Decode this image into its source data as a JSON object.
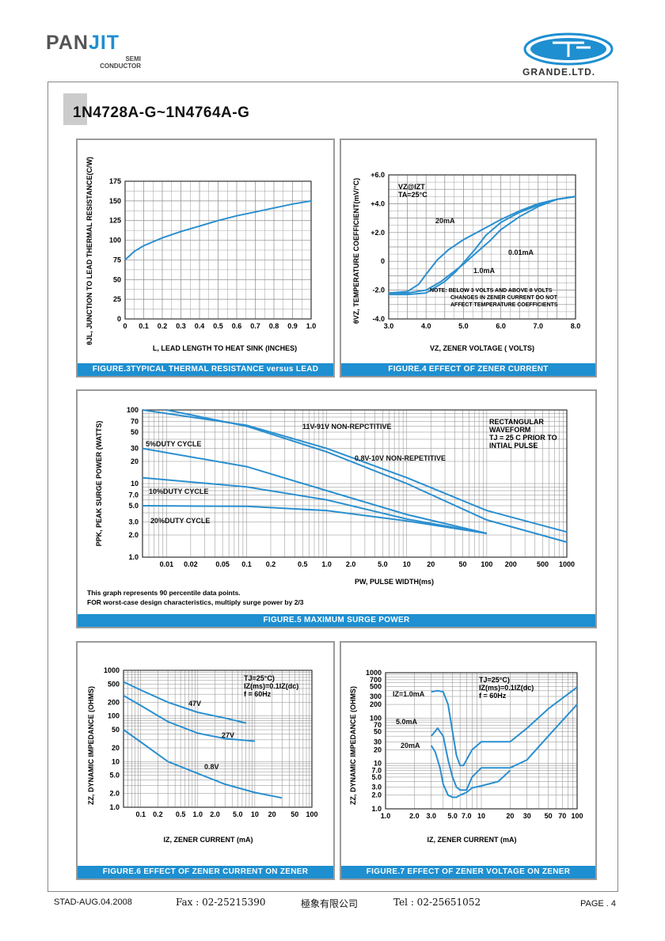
{
  "header": {
    "logo_main_a": "PAN",
    "logo_main_b": "JIT",
    "logo_sub_1": "SEMI",
    "logo_sub_2": "CONDUCTOR",
    "grande": "GRANDE.LTD.",
    "title": "1N4728A-G~1N4764A-G"
  },
  "footer": {
    "left": "STAD-AUG.04.2008",
    "fax": "Fax : 02-25215390",
    "company": "極象有限公司",
    "tel": "Tel : 02-25651052",
    "page": "PAGE . 4"
  },
  "colors": {
    "accent": "#1e8fd0",
    "curve": "#2a8fcf",
    "grid": "#8a8a8a"
  },
  "chart_data": [
    {
      "type": "line",
      "caption": "FIGURE.3TYPICAL THERMAL RESISTANCE versus LEAD LENGTH",
      "xlabel": "L, LEAD LENGTH TO HEAT SINK (INCHES)",
      "ylabel": "θJL, JUNCTION TO LEAD THERMAL RESISTANCE(C/W)",
      "xlim": [
        0,
        1.0
      ],
      "ylim": [
        0,
        175
      ],
      "xticks": [
        "0",
        "0.1",
        "0.2",
        "0.3",
        "0.4",
        "0.5",
        "0.6",
        "0.7",
        "0.8",
        "0.9",
        "1.0"
      ],
      "yticks": [
        "0",
        "25",
        "50",
        "75",
        "100",
        "125",
        "150",
        "175"
      ],
      "series": [
        {
          "x": [
            0,
            0.05,
            0.1,
            0.2,
            0.3,
            0.4,
            0.5,
            0.6,
            0.7,
            0.8,
            0.9,
            1.0
          ],
          "y": [
            75,
            86,
            93,
            103,
            111,
            118,
            125,
            131,
            136,
            141,
            146,
            150
          ]
        }
      ]
    },
    {
      "type": "line",
      "caption": "FIGURE.4 EFFECT OF ZENER CURRENT",
      "xlabel": "VZ, ZENER VOLTAGE ( VOLTS)",
      "ylabel": "θVZ, TEMPERATURE COEFFICIENT(mV/°C)",
      "xlim": [
        3.0,
        8.0
      ],
      "ylim": [
        -4.0,
        6.0
      ],
      "xticks": [
        "3.0",
        "4.0",
        "5.0",
        "6.0",
        "7.0",
        "8.0"
      ],
      "yticks": [
        "-4.0",
        "-2.0",
        "0",
        "+2.0",
        "+4.0",
        "+6.0"
      ],
      "annotations": [
        "VZ@IZT",
        "TA=25°C",
        "NOTE: BELOW 3 VOLTS AND ABOVE 8 VOLTS",
        "CHANGES IN ZENER CURRENT DO NOT",
        "AFFECT TEMPERATURE COEFFICIENTS"
      ],
      "series": [
        {
          "name": "20mA",
          "x": [
            3.0,
            3.5,
            3.8,
            4.0,
            4.3,
            4.6,
            5.0,
            5.5,
            6.0,
            6.5,
            7.0,
            7.5,
            8.0
          ],
          "y": [
            -2.2,
            -2.1,
            -1.6,
            -0.9,
            0.1,
            0.8,
            1.5,
            2.2,
            2.9,
            3.5,
            4.0,
            4.3,
            4.5
          ]
        },
        {
          "name": "0.01mA",
          "x": [
            3.0,
            3.5,
            4.0,
            4.5,
            4.8,
            5.0,
            5.3,
            5.6,
            6.0,
            6.5,
            7.0,
            7.5,
            8.0
          ],
          "y": [
            -2.3,
            -2.3,
            -2.2,
            -1.4,
            -0.7,
            -0.1,
            0.8,
            1.8,
            2.7,
            3.4,
            3.9,
            4.3,
            4.5
          ]
        },
        {
          "name": "1.0mA",
          "x": [
            3.0,
            3.5,
            4.0,
            4.4,
            4.7,
            5.0,
            5.3,
            5.7,
            6.0,
            6.5,
            7.0,
            7.5,
            8.0
          ],
          "y": [
            -2.2,
            -2.2,
            -2.0,
            -1.4,
            -0.8,
            -0.2,
            0.5,
            1.4,
            2.2,
            3.1,
            3.8,
            4.3,
            4.5
          ]
        }
      ]
    },
    {
      "type": "line",
      "caption": "FIGURE.5 MAXIMUM SURGE POWER",
      "xlabel": "PW, PULSE WIDTH(ms)",
      "ylabel": "PPK, PEAK SURGE POWER (WATTS)",
      "log_x": true,
      "log_y": true,
      "xlim": [
        0.005,
        1000
      ],
      "ylim": [
        1.0,
        100
      ],
      "xticks": [
        "0.01",
        "0.02",
        "0.05",
        "0.1",
        "0.2",
        "0.5",
        "1.0",
        "2.0",
        "5.0",
        "10",
        "20",
        "50",
        "100",
        "200",
        "500",
        "1000"
      ],
      "yticks": [
        "1.0",
        "2.0",
        "3.0",
        "5.0",
        "7.0",
        "10",
        "20",
        "30",
        "50",
        "70",
        "100"
      ],
      "notes": [
        "This graph represents 90 percentile data points.",
        "FOR worst-case design characteristics, multiply surge power by 2/3"
      ],
      "legend_box": [
        "RECTANGULAR",
        "WAVEFORM",
        "TJ = 25 C PRIOR TO",
        "INTIAL PULSE"
      ],
      "series": [
        {
          "name": "11V-91V NON-REPCTITIVE",
          "x": [
            0.005,
            0.1,
            1,
            10,
            100,
            1000
          ],
          "y": [
            100,
            62,
            30,
            12,
            4.3,
            2.2
          ]
        },
        {
          "name": "0.8V-10V NON-REPETITIVE",
          "x": [
            0.01,
            0.1,
            1,
            10,
            100,
            1000
          ],
          "y": [
            100,
            60,
            27,
            10,
            3.2,
            1.6
          ]
        },
        {
          "name": "5%DUTY CYCLE",
          "x": [
            0.005,
            0.1,
            1,
            10,
            100
          ],
          "y": [
            30,
            17,
            8,
            3.8,
            2.1
          ]
        },
        {
          "name": "10%DUTY CYCLE",
          "x": [
            0.005,
            0.1,
            1,
            10,
            100
          ],
          "y": [
            12,
            9,
            6,
            3.3,
            2.1
          ]
        },
        {
          "name": "20%DUTY CYCLE",
          "x": [
            0.005,
            0.1,
            1,
            10,
            100
          ],
          "y": [
            5,
            4.9,
            4.3,
            3.1,
            2.1
          ]
        }
      ]
    },
    {
      "type": "line",
      "caption": "FIGURE.6 EFFECT OF ZENER CURRENT ON ZENER IMPEDANCE",
      "xlabel": "IZ, ZENER CURRENT (mA)",
      "ylabel": "ZZ, DYNAMIC IMPEDANCE (OHMS)",
      "log_x": true,
      "log_y": true,
      "xlim": [
        0.05,
        100
      ],
      "ylim": [
        1.0,
        1000
      ],
      "xticks": [
        "0.1",
        "0.2",
        "0.5",
        "1.0",
        "2.0",
        "5.0",
        "10",
        "20",
        "50",
        "100"
      ],
      "yticks": [
        "1.0",
        "2.0",
        "5.0",
        "10",
        "20",
        "50",
        "100",
        "200",
        "500",
        "1000"
      ],
      "annotations": [
        "TJ=25°C)",
        "IZ(ms)=0.1IZ(dc)",
        "f = 60Hz"
      ],
      "series": [
        {
          "name": "47V",
          "x": [
            0.05,
            0.1,
            0.3,
            1,
            3,
            7
          ],
          "y": [
            560,
            370,
            200,
            120,
            90,
            70
          ]
        },
        {
          "name": "27V",
          "x": [
            0.05,
            0.1,
            0.3,
            1,
            3,
            10
          ],
          "y": [
            280,
            170,
            75,
            42,
            32,
            28
          ]
        },
        {
          "name": "0.8V",
          "x": [
            0.05,
            0.1,
            0.3,
            1,
            3,
            10,
            30
          ],
          "y": [
            50,
            27,
            10,
            5.5,
            3.2,
            2.1,
            1.6
          ]
        }
      ]
    },
    {
      "type": "line",
      "caption": "FIGURE.7 EFFECT OF ZENER VOLTAGE ON ZENER IMPEDANCE",
      "xlabel": "IZ, ZENER CURRENT (mA)",
      "ylabel": "ZZ, DYNAMIC IMPEDANCE (OHMS)",
      "log_x": true,
      "log_y": true,
      "xlim": [
        1,
        100
      ],
      "ylim": [
        1.0,
        1000
      ],
      "xticks": [
        "1.0",
        "2.0",
        "3.0",
        "5.0",
        "7.0",
        "10",
        "20",
        "30",
        "50",
        "70",
        "100"
      ],
      "yticks": [
        "1.0",
        "2.0",
        "3.0",
        "5.0",
        "7.0",
        "10",
        "20",
        "30",
        "50",
        "70",
        "100",
        "200",
        "300",
        "500",
        "700",
        "1000"
      ],
      "annotations": [
        "TJ=25°C)",
        "IZ(ms)=0.1IZ(dc)",
        "f = 60Hz"
      ],
      "series": [
        {
          "name": "IZ=1.0mA",
          "x": [
            3,
            3.5,
            4,
            4.5,
            5,
            5.5,
            6,
            6.5,
            7,
            8,
            10,
            15,
            20,
            30,
            50,
            100
          ],
          "y": [
            380,
            400,
            380,
            200,
            50,
            15,
            9,
            9,
            12,
            20,
            30,
            30,
            30,
            60,
            160,
            480
          ]
        },
        {
          "name": "5.0mA",
          "x": [
            3,
            3.5,
            4,
            4.5,
            5,
            5.5,
            6,
            7,
            8,
            10,
            15,
            20,
            30,
            50,
            100
          ],
          "y": [
            40,
            60,
            40,
            12,
            5,
            3,
            2.6,
            2.6,
            5,
            8,
            8,
            8,
            12,
            40,
            200
          ]
        },
        {
          "name": "20mA",
          "x": [
            3,
            3.3,
            3.7,
            4,
            4.5,
            5,
            5.5,
            6,
            7,
            8,
            10,
            15,
            20
          ],
          "y": [
            25,
            18,
            8,
            3.5,
            2,
            1.8,
            1.8,
            2,
            2.3,
            2.9,
            3.2,
            4,
            7
          ]
        }
      ]
    }
  ]
}
